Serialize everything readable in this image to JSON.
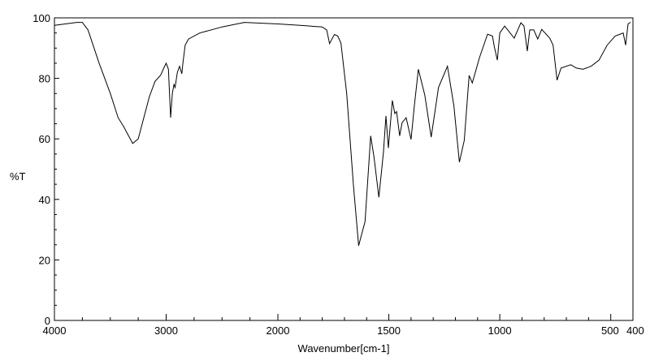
{
  "chart_data": {
    "type": "line",
    "title": "",
    "xlabel": "Wavenumber[cm-1]",
    "ylabel": "%T",
    "xlim": [
      4000,
      400
    ],
    "ylim": [
      0,
      100
    ],
    "x_axis_break_scale": "4000-2000 compressed 2x relative to 2000-400",
    "x_ticks": [
      4000,
      3000,
      2000,
      1500,
      1000,
      500,
      400
    ],
    "x_tick_labels": [
      "4000",
      "3000",
      "2000",
      "1500",
      "1000",
      "500",
      "400"
    ],
    "y_ticks": [
      0,
      20,
      40,
      60,
      80,
      100
    ],
    "y_tick_labels": [
      "0",
      "20",
      "40",
      "60",
      "80",
      "100"
    ],
    "grid": false,
    "line_color": "#000000",
    "series": [
      {
        "x": [
          4000,
          3800,
          3750,
          3700,
          3600,
          3500,
          3430,
          3380,
          3300,
          3250,
          3200,
          3150,
          3100,
          3050,
          3020,
          3000,
          2980,
          2960,
          2945,
          2930,
          2920,
          2900,
          2880,
          2860,
          2850,
          2830,
          2800,
          2700,
          2500,
          2300,
          2000,
          1900,
          1800,
          1780,
          1767,
          1745,
          1730,
          1716,
          1690,
          1660,
          1636,
          1607,
          1582,
          1567,
          1545,
          1524,
          1513,
          1502,
          1484,
          1473,
          1465,
          1451,
          1440,
          1422,
          1400,
          1385,
          1367,
          1338,
          1309,
          1276,
          1236,
          1207,
          1182,
          1160,
          1138,
          1124,
          1091,
          1055,
          1033,
          1025,
          1011,
          1000,
          978,
          935,
          905,
          891,
          876,
          865,
          847,
          829,
          811,
          775,
          760,
          742,
          724,
          680,
          655,
          625,
          589,
          553,
          516,
          480,
          444,
          433,
          422,
          411
        ],
        "y": [
          97.5,
          98.5,
          98.5,
          96,
          85,
          75,
          67,
          64,
          58.5,
          60,
          67,
          74,
          79,
          81,
          83.5,
          85,
          83,
          67,
          75,
          78,
          77,
          82,
          84,
          81.5,
          85,
          91,
          93,
          95,
          97,
          98.5,
          98,
          97.5,
          97,
          96,
          91.5,
          94.5,
          94,
          91.7,
          75,
          45,
          24.7,
          32.7,
          61,
          54,
          40.7,
          55.8,
          67.6,
          57,
          72.7,
          68.4,
          69,
          61,
          65.4,
          67,
          59.8,
          71,
          83,
          74.5,
          60.6,
          77,
          84,
          71,
          52.3,
          59.5,
          81,
          78.5,
          87,
          94.6,
          94,
          90.6,
          86,
          95,
          97.3,
          93.3,
          98.4,
          97.3,
          89,
          96,
          96,
          93,
          96.2,
          93.3,
          91,
          79.4,
          83.4,
          84.5,
          83.4,
          83,
          84,
          86,
          91,
          94,
          95,
          91,
          98,
          98.5
        ]
      }
    ]
  }
}
